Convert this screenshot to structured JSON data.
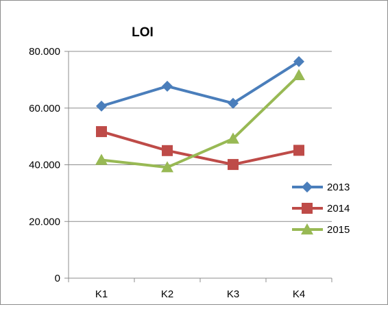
{
  "chart_data": {
    "type": "line",
    "title": "LOI",
    "xlabel": "",
    "ylabel": "",
    "categories": [
      "K1",
      "K2",
      "K3",
      "K4"
    ],
    "y_ticks": [
      "0",
      "20.000",
      "40.000",
      "60.000",
      "80.000"
    ],
    "ylim": [
      0,
      80000
    ],
    "grid": true,
    "legend_position": "right",
    "series": [
      {
        "name": "2013",
        "values": [
          60700,
          67700,
          61700,
          76400
        ],
        "color": "#4a7ebb",
        "marker": "diamond"
      },
      {
        "name": "2014",
        "values": [
          51700,
          45000,
          40100,
          45100
        ],
        "color": "#be4b48",
        "marker": "square"
      },
      {
        "name": "2015",
        "values": [
          41700,
          39100,
          49200,
          71600
        ],
        "color": "#98b954",
        "marker": "triangle"
      }
    ]
  }
}
